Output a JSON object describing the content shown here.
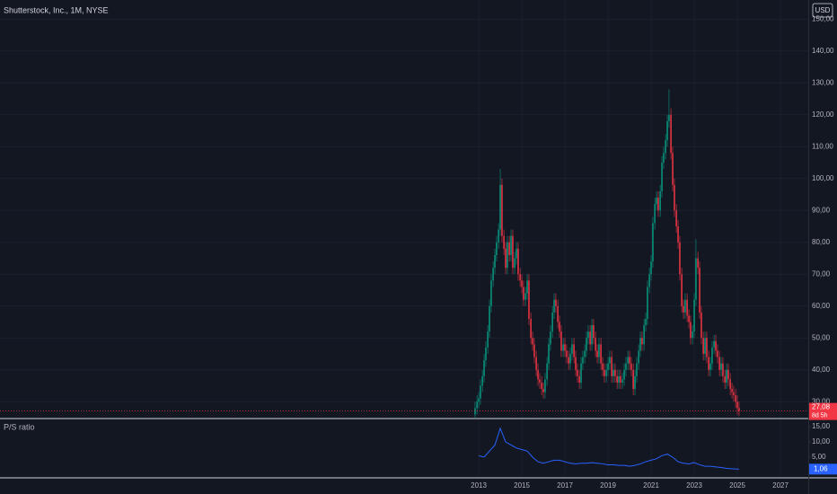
{
  "chart_data": [
    {
      "type": "candlestick",
      "title": "Shutterstock, Inc., 1M, NYSE",
      "currency": "USD",
      "up_color": "#089981",
      "down_color": "#f23645",
      "x": [
        2012.83,
        2012.92,
        2013.0,
        2013.08,
        2013.17,
        2013.25,
        2013.33,
        2013.42,
        2013.5,
        2013.58,
        2013.67,
        2013.75,
        2013.83,
        2013.92,
        2014.0,
        2014.08,
        2014.17,
        2014.25,
        2014.33,
        2014.42,
        2014.5,
        2014.58,
        2014.67,
        2014.75,
        2014.83,
        2014.92,
        2015.0,
        2015.08,
        2015.17,
        2015.25,
        2015.33,
        2015.42,
        2015.5,
        2015.58,
        2015.67,
        2015.75,
        2015.83,
        2015.92,
        2016.0,
        2016.08,
        2016.17,
        2016.25,
        2016.33,
        2016.42,
        2016.5,
        2016.58,
        2016.67,
        2016.75,
        2016.83,
        2016.92,
        2017.0,
        2017.08,
        2017.17,
        2017.25,
        2017.33,
        2017.42,
        2017.5,
        2017.58,
        2017.67,
        2017.75,
        2017.83,
        2017.92,
        2018.0,
        2018.08,
        2018.17,
        2018.25,
        2018.33,
        2018.42,
        2018.5,
        2018.58,
        2018.67,
        2018.75,
        2018.83,
        2018.92,
        2019.0,
        2019.08,
        2019.17,
        2019.25,
        2019.33,
        2019.42,
        2019.5,
        2019.58,
        2019.67,
        2019.75,
        2019.83,
        2019.92,
        2020.0,
        2020.08,
        2020.17,
        2020.25,
        2020.33,
        2020.42,
        2020.5,
        2020.58,
        2020.67,
        2020.75,
        2020.83,
        2020.92,
        2021.0,
        2021.08,
        2021.17,
        2021.25,
        2021.33,
        2021.42,
        2021.5,
        2021.58,
        2021.67,
        2021.75,
        2021.83,
        2021.92,
        2022.0,
        2022.08,
        2022.17,
        2022.25,
        2022.33,
        2022.42,
        2022.5,
        2022.58,
        2022.67,
        2022.75,
        2022.83,
        2022.92,
        2023.0,
        2023.08,
        2023.17,
        2023.25,
        2023.33,
        2023.42,
        2023.5,
        2023.58,
        2023.67,
        2023.75,
        2023.83,
        2023.92,
        2024.0,
        2024.08,
        2024.17,
        2024.25,
        2024.33,
        2024.42,
        2024.5,
        2024.58,
        2024.67,
        2024.75,
        2024.83,
        2024.92,
        2025.0,
        2025.08
      ],
      "open": [
        26,
        28,
        30,
        31,
        35,
        38,
        43,
        47,
        52,
        60,
        68,
        72,
        76,
        80,
        84,
        98,
        82,
        78,
        72,
        80,
        76,
        82,
        72,
        75,
        78,
        70,
        68,
        66,
        62,
        64,
        68,
        56,
        50,
        48,
        44,
        40,
        37,
        36,
        34,
        33,
        37,
        42,
        48,
        52,
        58,
        62,
        60,
        55,
        52,
        46,
        48,
        46,
        44,
        42,
        45,
        48,
        44,
        40,
        38,
        36,
        42,
        44,
        46,
        50,
        52,
        48,
        54,
        50,
        46,
        44,
        48,
        42,
        40,
        38,
        40,
        42,
        44,
        38,
        40,
        38,
        36,
        38,
        36,
        37,
        40,
        42,
        44,
        42,
        40,
        34,
        38,
        42,
        46,
        50,
        48,
        54,
        56,
        66,
        70,
        74,
        86,
        92,
        94,
        90,
        96,
        105,
        108,
        112,
        118,
        120,
        108,
        98,
        90,
        85,
        80,
        70,
        60,
        58,
        62,
        57,
        55,
        50,
        52,
        62,
        75,
        72,
        58,
        50,
        45,
        50,
        44,
        40,
        42,
        47,
        49,
        46,
        44,
        40,
        42,
        38,
        36,
        40,
        37,
        34,
        33,
        32,
        30,
        28
      ],
      "high": [
        30,
        32,
        33,
        37,
        40,
        45,
        49,
        54,
        62,
        70,
        74,
        78,
        82,
        86,
        103,
        100,
        84,
        80,
        82,
        82,
        84,
        84,
        77,
        80,
        80,
        72,
        70,
        68,
        66,
        70,
        70,
        58,
        52,
        50,
        46,
        42,
        39,
        38,
        36,
        39,
        44,
        50,
        54,
        60,
        64,
        64,
        62,
        57,
        54,
        50,
        50,
        48,
        46,
        47,
        50,
        50,
        46,
        42,
        40,
        44,
        46,
        48,
        52,
        54,
        54,
        56,
        56,
        52,
        48,
        50,
        50,
        44,
        42,
        42,
        44,
        46,
        46,
        42,
        42,
        40,
        40,
        40,
        39,
        42,
        44,
        46,
        46,
        44,
        42,
        40,
        44,
        48,
        52,
        52,
        56,
        58,
        68,
        72,
        76,
        88,
        94,
        96,
        96,
        98,
        107,
        110,
        114,
        120,
        128,
        122,
        110,
        100,
        92,
        87,
        82,
        72,
        62,
        64,
        64,
        59,
        57,
        54,
        64,
        81,
        77,
        74,
        60,
        52,
        52,
        52,
        46,
        44,
        49,
        51,
        51,
        48,
        46,
        44,
        44,
        40,
        42,
        42,
        39,
        36,
        35,
        34,
        32,
        30
      ],
      "low": [
        24,
        26,
        28,
        29,
        33,
        36,
        41,
        45,
        50,
        58,
        66,
        70,
        74,
        78,
        82,
        80,
        76,
        70,
        70,
        74,
        74,
        70,
        70,
        73,
        68,
        66,
        64,
        60,
        60,
        62,
        54,
        48,
        46,
        42,
        38,
        35,
        34,
        32,
        31,
        31,
        35,
        40,
        46,
        50,
        56,
        58,
        53,
        50,
        44,
        44,
        44,
        42,
        40,
        40,
        43,
        42,
        38,
        36,
        34,
        34,
        40,
        42,
        44,
        48,
        46,
        46,
        48,
        44,
        42,
        42,
        40,
        38,
        36,
        36,
        38,
        40,
        36,
        36,
        36,
        34,
        34,
        34,
        34,
        35,
        38,
        40,
        40,
        38,
        32,
        32,
        36,
        40,
        44,
        46,
        46,
        52,
        54,
        64,
        68,
        72,
        84,
        90,
        88,
        88,
        94,
        103,
        106,
        110,
        116,
        106,
        96,
        88,
        83,
        78,
        68,
        58,
        56,
        56,
        55,
        53,
        48,
        48,
        50,
        60,
        70,
        56,
        48,
        43,
        43,
        42,
        38,
        38,
        40,
        45,
        44,
        42,
        38,
        38,
        36,
        34,
        34,
        35,
        32,
        31,
        30,
        28,
        26,
        25.5
      ],
      "close": [
        28,
        30,
        31,
        35,
        38,
        43,
        47,
        52,
        60,
        68,
        72,
        76,
        80,
        84,
        98,
        82,
        78,
        72,
        80,
        76,
        82,
        72,
        75,
        78,
        70,
        68,
        66,
        62,
        64,
        68,
        56,
        50,
        48,
        44,
        40,
        37,
        36,
        34,
        33,
        37,
        42,
        48,
        52,
        58,
        62,
        60,
        55,
        52,
        46,
        48,
        46,
        44,
        42,
        45,
        48,
        44,
        40,
        38,
        36,
        42,
        44,
        46,
        50,
        52,
        48,
        54,
        50,
        46,
        44,
        48,
        42,
        40,
        38,
        40,
        42,
        44,
        38,
        40,
        38,
        36,
        38,
        36,
        37,
        40,
        42,
        44,
        42,
        40,
        34,
        38,
        42,
        46,
        50,
        48,
        54,
        56,
        66,
        70,
        74,
        86,
        92,
        94,
        90,
        96,
        105,
        108,
        112,
        118,
        120,
        108,
        98,
        90,
        85,
        80,
        70,
        60,
        58,
        62,
        57,
        55,
        50,
        52,
        62,
        75,
        72,
        58,
        50,
        45,
        50,
        44,
        40,
        42,
        47,
        49,
        46,
        44,
        40,
        42,
        38,
        36,
        40,
        37,
        34,
        33,
        32,
        30,
        28,
        27.08
      ],
      "last_price_label": "27,08",
      "countdown": "8d 5h",
      "xlim": [
        1990.79,
        2028.29
      ],
      "xticks": [
        2013,
        2015,
        2017,
        2019,
        2021,
        2023,
        2025,
        2027
      ],
      "ylim": [
        25,
        156
      ],
      "yticks": [
        {
          "value": 30,
          "label": "30,00"
        },
        {
          "value": 40,
          "label": "40,00"
        },
        {
          "value": 50,
          "label": "50,00"
        },
        {
          "value": 60,
          "label": "60,00"
        },
        {
          "value": 70,
          "label": "70,00"
        },
        {
          "value": 80,
          "label": "80,00"
        },
        {
          "value": 90,
          "label": "90,00"
        },
        {
          "value": 100,
          "label": "100,00"
        },
        {
          "value": 110,
          "label": "110,00"
        },
        {
          "value": 120,
          "label": "120,00"
        },
        {
          "value": 130,
          "label": "130,00"
        },
        {
          "value": 140,
          "label": "140,00"
        },
        {
          "value": 150,
          "label": "150,00"
        }
      ],
      "grid": true
    },
    {
      "type": "line",
      "title": "P/S ratio",
      "color": "#2962ff",
      "x": [
        2013.0,
        2013.25,
        2013.5,
        2013.75,
        2014.0,
        2014.25,
        2014.5,
        2014.75,
        2015.0,
        2015.25,
        2015.5,
        2015.75,
        2016.0,
        2016.25,
        2016.5,
        2016.75,
        2017.0,
        2017.25,
        2017.5,
        2017.75,
        2018.0,
        2018.25,
        2018.5,
        2018.75,
        2019.0,
        2019.25,
        2019.5,
        2019.75,
        2020.0,
        2020.25,
        2020.5,
        2020.75,
        2021.0,
        2021.25,
        2021.5,
        2021.75,
        2022.0,
        2022.25,
        2022.5,
        2022.75,
        2023.0,
        2023.25,
        2023.5,
        2023.75,
        2024.0,
        2024.25,
        2024.5,
        2024.75,
        2025.08
      ],
      "values": [
        5.5,
        5,
        7,
        9,
        14.5,
        10,
        9,
        8,
        7.5,
        7,
        5,
        3.5,
        3,
        3.5,
        4,
        4,
        3.5,
        3,
        2.8,
        3,
        3,
        3.2,
        3,
        2.8,
        2.5,
        2.5,
        2.3,
        2.3,
        2,
        2.3,
        2.8,
        3.5,
        4,
        4.5,
        5.5,
        6,
        5,
        3.5,
        3,
        2.8,
        3.2,
        2.5,
        2,
        2,
        1.8,
        1.6,
        1.3,
        1.2,
        1.06
      ],
      "last_value_label": "1,06",
      "xlim": [
        1990.79,
        2028.29
      ],
      "ylim": [
        -1.5,
        17.4
      ],
      "yticks": [
        {
          "value": 5,
          "label": "5,00"
        },
        {
          "value": 10,
          "label": "10,00"
        },
        {
          "value": 15,
          "label": "15,00"
        }
      ]
    }
  ]
}
